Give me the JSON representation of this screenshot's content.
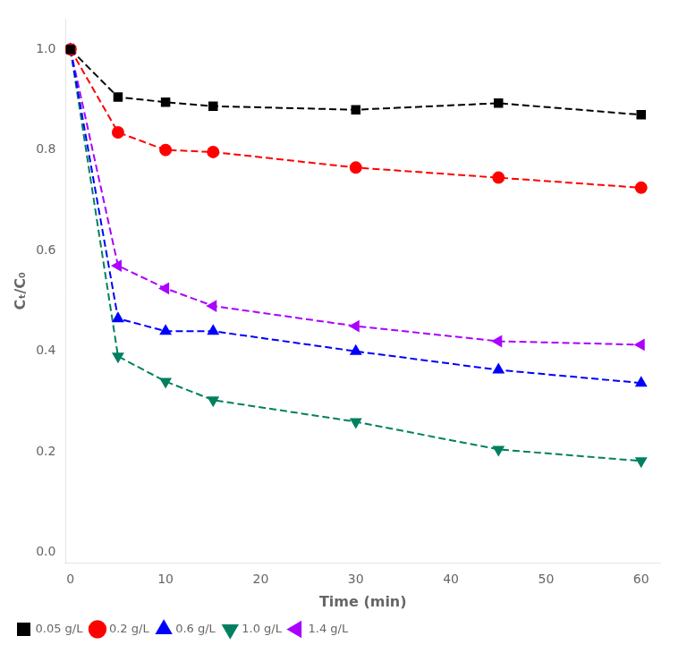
{
  "chart_data": {
    "type": "line",
    "x_label": "Time (min)",
    "y_label": "Cₜ/C₀",
    "series": [
      {
        "name": "0.05 g/L",
        "color": "#000000",
        "marker": "square",
        "line_style": "dashed",
        "x": [
          0,
          5,
          10,
          15,
          30,
          45,
          60
        ],
        "values": [
          1.0,
          0.905,
          0.895,
          0.887,
          0.88,
          0.893,
          0.87
        ]
      },
      {
        "name": "0.2 g/L",
        "color": "#ff0000",
        "marker": "circle",
        "line_style": "dashed",
        "x": [
          0,
          5,
          10,
          15,
          30,
          45,
          60
        ],
        "values": [
          1.0,
          0.835,
          0.8,
          0.796,
          0.765,
          0.745,
          0.725
        ]
      },
      {
        "name": "0.6 g/L",
        "color": "#0000ff",
        "marker": "triangle-up",
        "line_style": "dashed",
        "x": [
          0,
          5,
          10,
          15,
          30,
          45,
          60
        ],
        "values": [
          1.0,
          0.465,
          0.44,
          0.44,
          0.4,
          0.363,
          0.337
        ]
      },
      {
        "name": "1.0 g/L",
        "color": "#008060",
        "marker": "triangle-down",
        "line_style": "dashed",
        "x": [
          0,
          5,
          10,
          15,
          30,
          45,
          60
        ],
        "values": [
          1.0,
          0.39,
          0.34,
          0.303,
          0.26,
          0.205,
          0.182
        ]
      },
      {
        "name": "1.4 g/L",
        "color": "#aa00ff",
        "marker": "triangle-left",
        "line_style": "dashed",
        "x": [
          0,
          5,
          10,
          15,
          30,
          45,
          60
        ],
        "values": [
          1.0,
          0.57,
          0.525,
          0.49,
          0.45,
          0.42,
          0.413
        ]
      }
    ],
    "xlim": [
      -0.5,
      62
    ],
    "ylim": [
      -0.02,
      1.06
    ],
    "xticks": [
      0,
      10,
      20,
      30,
      40,
      50,
      60
    ],
    "yticks": [
      {
        "value": 0.0,
        "label": "0.0"
      },
      0.2,
      0.4,
      0.6,
      0.8,
      {
        "value": 1.0,
        "label": "1.0"
      }
    ],
    "grid": false,
    "legend": "lower left"
  }
}
